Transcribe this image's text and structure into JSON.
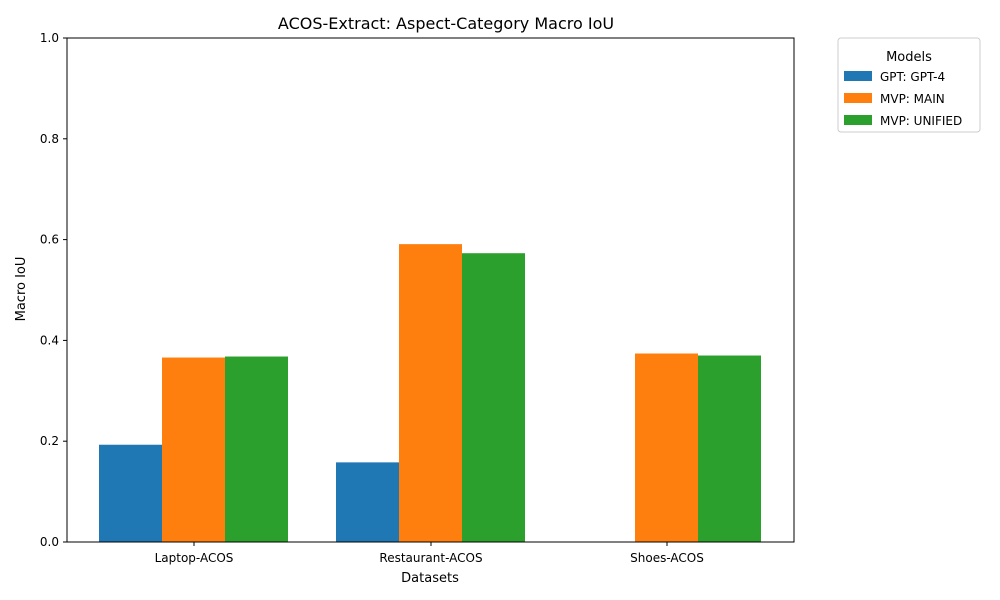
{
  "chart_data": {
    "type": "bar",
    "title": "ACOS-Extract: Aspect-Category Macro IoU",
    "xlabel": "Datasets",
    "ylabel": "Macro IoU",
    "ylim": [
      0,
      1
    ],
    "yticks": [
      "0.0",
      "0.2",
      "0.4",
      "0.6",
      "0.8",
      "1.0"
    ],
    "categories": [
      "Laptop-ACOS",
      "Restaurant-ACOS",
      "Shoes-ACOS"
    ],
    "series": [
      {
        "name": "GPT: GPT-4",
        "color": "#1f77b4",
        "values": [
          0.193,
          0.158,
          null
        ]
      },
      {
        "name": "MVP: MAIN",
        "color": "#ff7f0e",
        "values": [
          0.366,
          0.591,
          0.374
        ]
      },
      {
        "name": "MVP: UNIFIED",
        "color": "#2ca02c",
        "values": [
          0.368,
          0.573,
          0.37
        ]
      }
    ],
    "legend": {
      "title": "Models",
      "placement": "outside-top-right"
    },
    "grid": false
  }
}
